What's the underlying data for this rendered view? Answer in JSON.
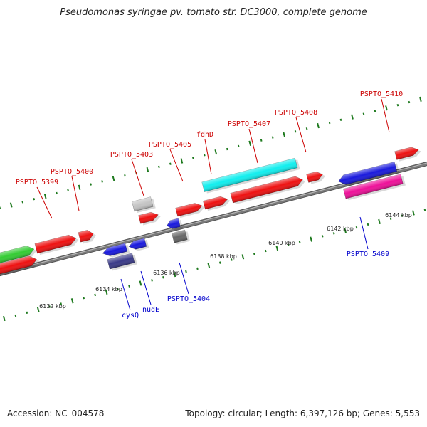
{
  "title": "Pseudomonas syringae pv. tomato str. DC3000, complete genome",
  "footer": {
    "accession": "Accession: NC_004578",
    "summary": "Topology: circular; Length: 6,397,126 bp; Genes: 5,553"
  },
  "colors": {
    "backbone": "#7a7a7a",
    "tick": "#1f7a1f",
    "top_label": "#cc0000",
    "bottom_label": "#0000cc"
  },
  "scale_labels": [
    "6132 kbp",
    "6134 kbp",
    "6136 kbp",
    "6138 kbp",
    "6140 kbp",
    "6142 kbp",
    "6144 kbp"
  ],
  "genes": [
    {
      "id": "g-green",
      "color": "#33cc33"
    },
    {
      "id": "g-5399",
      "color": "#ee1111"
    },
    {
      "id": "g-5400",
      "color": "#ee1111"
    },
    {
      "id": "g-5401",
      "color": "#ee1111"
    },
    {
      "id": "g-cysQ",
      "color": "#1a1add"
    },
    {
      "id": "g-cysQ-b",
      "color": "#3a3a88"
    },
    {
      "id": "g-nudE",
      "color": "#1a1add"
    },
    {
      "id": "g-gray",
      "color": "#c4c4c4"
    },
    {
      "id": "g-5403",
      "color": "#ee1111"
    },
    {
      "id": "g-5404a",
      "color": "#1a1add"
    },
    {
      "id": "g-5404",
      "color": "#666666"
    },
    {
      "id": "g-5405",
      "color": "#ee1111"
    },
    {
      "id": "g-fdhD",
      "color": "#ee1111"
    },
    {
      "id": "g-cyan",
      "color": "#11eeee"
    },
    {
      "id": "g-5407",
      "color": "#ee1111"
    },
    {
      "id": "g-5408",
      "color": "#ee1111"
    },
    {
      "id": "g-5409",
      "color": "#1a1add"
    },
    {
      "id": "g-5409-b",
      "color": "#ee1199"
    },
    {
      "id": "g-5410",
      "color": "#ee1111"
    }
  ],
  "gene_labels": [
    {
      "text": "PSPTO_5399",
      "strand": "top"
    },
    {
      "text": "PSPTO_5400",
      "strand": "top"
    },
    {
      "text": "PSPTO_5403",
      "strand": "top"
    },
    {
      "text": "PSPTO_5405",
      "strand": "top"
    },
    {
      "text": "fdhD",
      "strand": "top"
    },
    {
      "text": "PSPTO_5407",
      "strand": "top"
    },
    {
      "text": "PSPTO_5408",
      "strand": "top"
    },
    {
      "text": "PSPTO_5410",
      "strand": "top"
    },
    {
      "text": "cysQ",
      "strand": "bottom"
    },
    {
      "text": "nudE",
      "strand": "bottom"
    },
    {
      "text": "PSPTO_5404",
      "strand": "bottom"
    },
    {
      "text": "PSPTO_5409",
      "strand": "bottom"
    }
  ]
}
